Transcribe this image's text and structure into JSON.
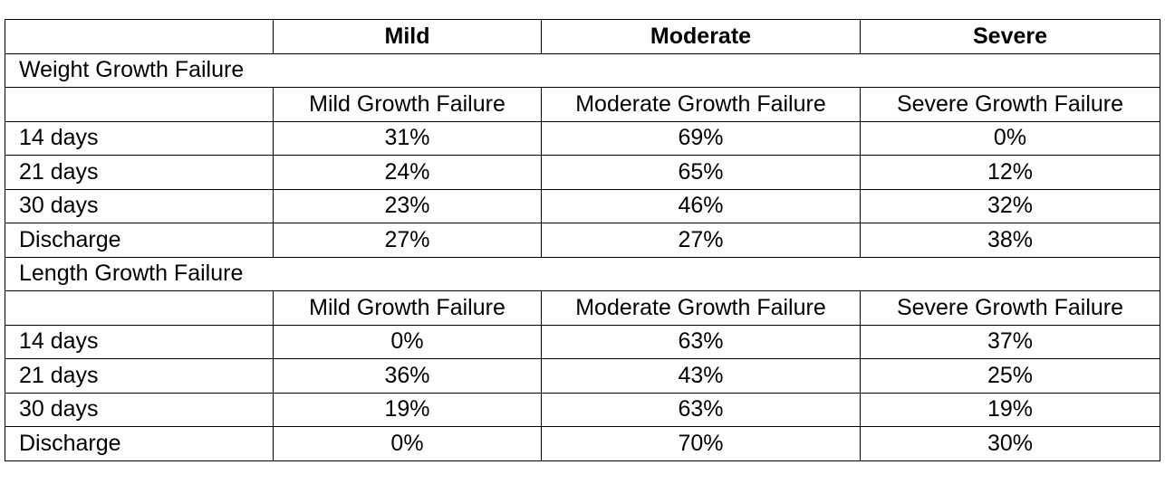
{
  "header": {
    "col0": "",
    "col1": "Mild",
    "col2": "Moderate",
    "col3": "Severe"
  },
  "sections": [
    {
      "title": "Weight Growth Failure",
      "subheaders": [
        "Mild Growth Failure",
        "Moderate Growth Failure",
        "Severe Growth Failure"
      ],
      "rows": [
        {
          "label": "14 days",
          "values": [
            "31%",
            "69%",
            "0%"
          ]
        },
        {
          "label": "21 days",
          "values": [
            "24%",
            "65%",
            "12%"
          ]
        },
        {
          "label": "30 days",
          "values": [
            "23%",
            "46%",
            "32%"
          ]
        },
        {
          "label": "Discharge",
          "values": [
            "27%",
            "27%",
            "38%"
          ]
        }
      ]
    },
    {
      "title": "Length Growth Failure",
      "subheaders": [
        "Mild Growth Failure",
        "Moderate Growth Failure",
        "Severe Growth Failure"
      ],
      "rows": [
        {
          "label": "14 days",
          "values": [
            "0%",
            "63%",
            "37%"
          ]
        },
        {
          "label": "21 days",
          "values": [
            "36%",
            "43%",
            "25%"
          ]
        },
        {
          "label": "30 days",
          "values": [
            "19%",
            "63%",
            "19%"
          ]
        },
        {
          "label": "Discharge",
          "values": [
            "0%",
            "70%",
            "30%"
          ]
        }
      ]
    }
  ]
}
